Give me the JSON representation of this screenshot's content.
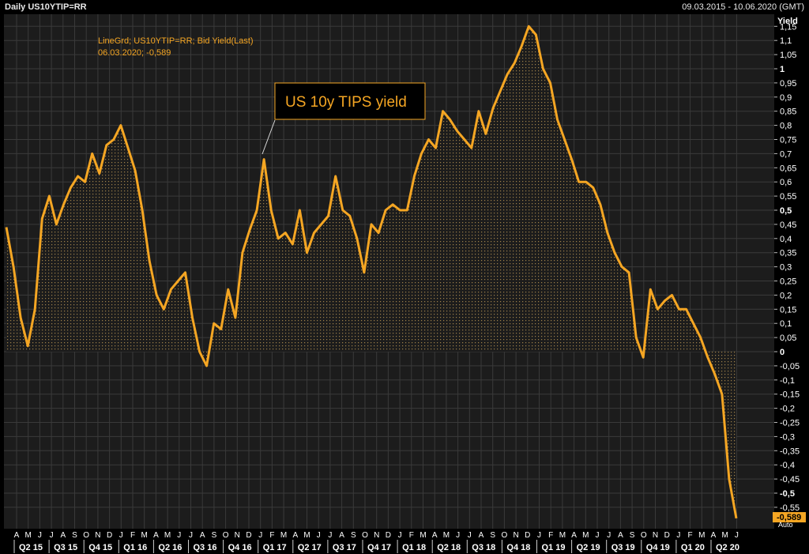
{
  "header": {
    "title": "Daily US10YTIP=RR",
    "date_range": "09.03.2015 - 10.06.2020 (GMT)"
  },
  "legend": {
    "line1": "LineGrd; US10YTIP=RR; Bid Yield(Last)",
    "line2": "06.03.2020; -0,589"
  },
  "colors": {
    "line": "#f5a623",
    "background": "#1c1c1c",
    "grid": "#3a3a3a",
    "legend_text": "#f5a623",
    "axis_text": "#ffffff",
    "last_value_tag": "#f5a623"
  },
  "chart_data": {
    "type": "area",
    "title": "US 10y TIPS yield",
    "ylabel": "Yield",
    "xlabel": "",
    "ylim": [
      -0.6,
      1.2
    ],
    "grid": true,
    "y_ticks": [
      "1,15",
      "1,1",
      "1,05",
      "1",
      "0,95",
      "0,9",
      "0,85",
      "0,8",
      "0,75",
      "0,7",
      "0,65",
      "0,6",
      "0,55",
      "0,5",
      "0,45",
      "0,4",
      "0,35",
      "0,3",
      "0,25",
      "0,2",
      "0,15",
      "0,1",
      "0,05",
      "0",
      "-0,05",
      "-0,1",
      "-0,15",
      "-0,2",
      "-0,25",
      "-0,3",
      "-0,35",
      "-0,4",
      "-0,45",
      "-0,5",
      "-0,55"
    ],
    "bold_y_ticks": [
      "1",
      "0,5",
      "0",
      "-0,5"
    ],
    "month_ticks": [
      "A",
      "M",
      "J",
      "J",
      "A",
      "S",
      "O",
      "N",
      "D",
      "J",
      "F",
      "M",
      "A",
      "M",
      "J",
      "J",
      "A",
      "S",
      "O",
      "N",
      "D",
      "J",
      "F",
      "M",
      "A",
      "M",
      "J",
      "J",
      "A",
      "S",
      "O",
      "N",
      "D",
      "J",
      "F",
      "M",
      "A",
      "M",
      "J",
      "J",
      "A",
      "S",
      "O",
      "N",
      "D",
      "J",
      "F",
      "M",
      "A",
      "M",
      "J",
      "J",
      "A",
      "S",
      "O",
      "N",
      "D",
      "J",
      "F",
      "M",
      "A",
      "M",
      "J"
    ],
    "quarter_ticks": [
      "Q2 15",
      "Q3 15",
      "Q4 15",
      "Q1 16",
      "Q2 16",
      "Q3 16",
      "Q4 16",
      "Q1 17",
      "Q2 17",
      "Q3 17",
      "Q4 17",
      "Q1 18",
      "Q2 18",
      "Q3 18",
      "Q4 18",
      "Q1 19",
      "Q2 19",
      "Q3 19",
      "Q4 19",
      "Q1 20",
      "Q2 20"
    ],
    "last_value": "-0,589",
    "last_value_date": "06.03.2020",
    "scale_mode": "Auto",
    "series": [
      {
        "values": [
          0.44,
          0.3,
          0.12,
          0.02,
          0.15,
          0.47,
          0.55,
          0.45,
          0.52,
          0.58,
          0.62,
          0.6,
          0.7,
          0.63,
          0.73,
          0.75,
          0.8,
          0.72,
          0.64,
          0.5,
          0.32,
          0.2,
          0.15,
          0.22,
          0.25,
          0.28,
          0.12,
          0.0,
          -0.05,
          0.1,
          0.08,
          0.22,
          0.12,
          0.35,
          0.43,
          0.5,
          0.68,
          0.5,
          0.4,
          0.42,
          0.38,
          0.5,
          0.35,
          0.42,
          0.45,
          0.48,
          0.62,
          0.5,
          0.48,
          0.4,
          0.28,
          0.45,
          0.42,
          0.5,
          0.52,
          0.5,
          0.5,
          0.62,
          0.7,
          0.75,
          0.72,
          0.85,
          0.82,
          0.78,
          0.75,
          0.72,
          0.85,
          0.77,
          0.86,
          0.92,
          0.98,
          1.02,
          1.08,
          1.15,
          1.12,
          1.0,
          0.95,
          0.82,
          0.75,
          0.68,
          0.6,
          0.6,
          0.58,
          0.52,
          0.42,
          0.35,
          0.3,
          0.28,
          0.05,
          -0.02,
          0.22,
          0.15,
          0.18,
          0.2,
          0.15,
          0.15,
          0.1,
          0.05,
          -0.02,
          -0.08,
          -0.15,
          -0.45,
          -0.589
        ]
      }
    ]
  }
}
